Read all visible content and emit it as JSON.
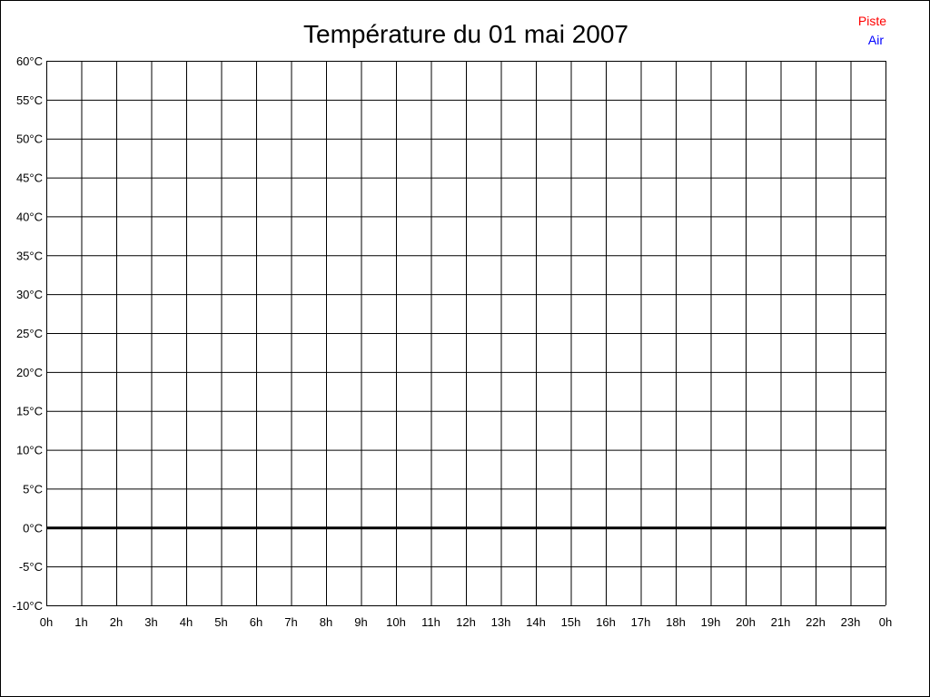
{
  "chart_data": {
    "type": "line",
    "title": "Température du 01 mai 2007",
    "xlabel": "",
    "ylabel": "",
    "x_ticks": [
      "0h",
      "1h",
      "2h",
      "3h",
      "4h",
      "5h",
      "6h",
      "7h",
      "8h",
      "9h",
      "10h",
      "11h",
      "12h",
      "13h",
      "14h",
      "15h",
      "16h",
      "17h",
      "18h",
      "19h",
      "20h",
      "21h",
      "22h",
      "23h",
      "0h"
    ],
    "y_ticks": [
      "60°C",
      "55°C",
      "50°C",
      "45°C",
      "40°C",
      "35°C",
      "30°C",
      "25°C",
      "20°C",
      "15°C",
      "10°C",
      "5°C",
      "0°C",
      "-5°C",
      "-10°C"
    ],
    "ylim": [
      -10,
      60
    ],
    "xlim": [
      0,
      24
    ],
    "grid": true,
    "legend_placement": "top-right",
    "series": [
      {
        "name": "Piste",
        "color": "#ff0000",
        "values": []
      },
      {
        "name": "Air",
        "color": "#0000ff",
        "values": []
      }
    ]
  }
}
